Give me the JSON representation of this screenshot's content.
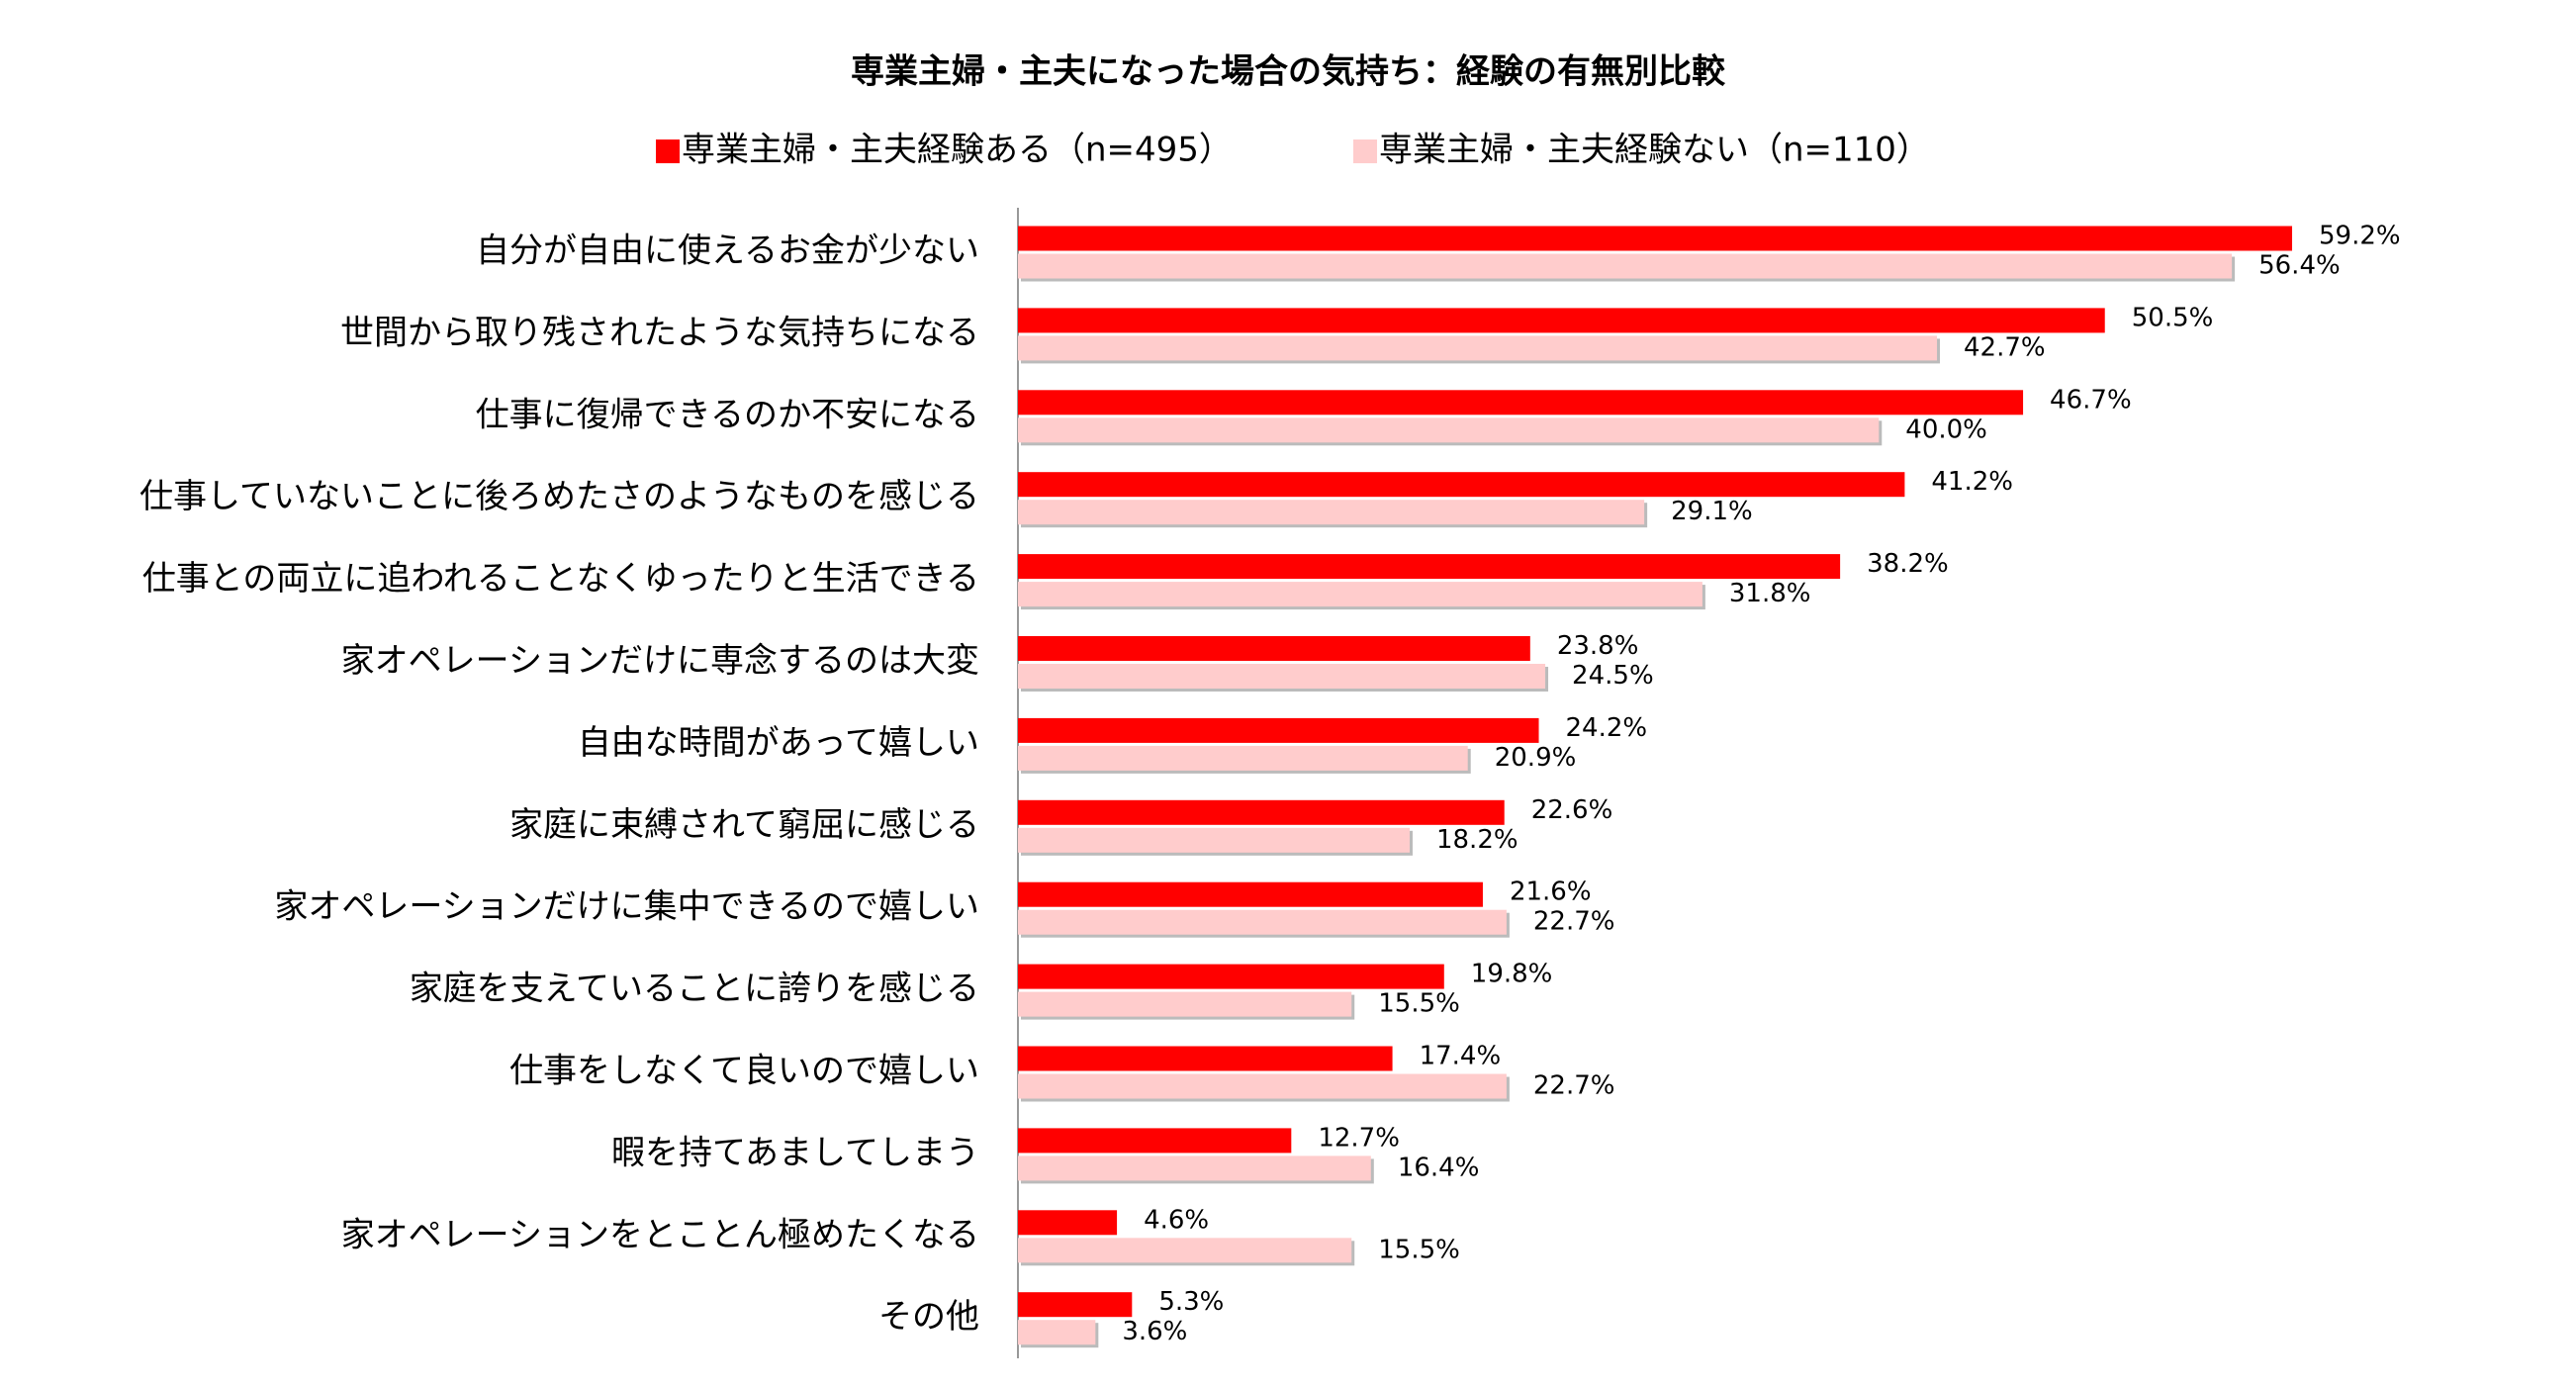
{
  "chart_data": {
    "type": "bar",
    "orientation": "horizontal",
    "title": "専業主婦・主夫になった場合の気持ち：経験の有無別比較",
    "categories": [
      "自分が自由に使えるお金が少ない",
      "世間から取り残されたような気持ちになる",
      "仕事に復帰できるのか不安になる",
      "仕事していないことに後ろめたさのようなものを感じる",
      "仕事との両立に追われることなくゆったりと生活できる",
      "家オペレーションだけに専念するのは大変",
      "自由な時間があって嬉しい",
      "家庭に束縛されて窮屈に感じる",
      "家オペレーションだけに集中できるので嬉しい",
      "家庭を支えていることに誇りを感じる",
      "仕事をしなくて良いので嬉しい",
      "暇を持てあましてしまう",
      "家オペレーションをとことん極めたくなる",
      "その他"
    ],
    "series": [
      {
        "name": "専業主婦・主夫経験ある（n=495）",
        "color": "#ff0000",
        "values": [
          59.2,
          50.5,
          46.7,
          41.2,
          38.2,
          23.8,
          24.2,
          22.6,
          21.6,
          19.8,
          17.4,
          12.7,
          4.6,
          5.3
        ],
        "value_labels": [
          "59.2%",
          "50.5%",
          "46.7%",
          "41.2%",
          "38.2%",
          "23.8%",
          "24.2%",
          "22.6%",
          "21.6%",
          "19.8%",
          "17.4%",
          "12.7%",
          "4.6%",
          "5.3%"
        ]
      },
      {
        "name": "専業主婦・主夫経験ない（n=110）",
        "color": "#ffcccc",
        "values": [
          56.4,
          42.7,
          40.0,
          29.1,
          31.8,
          24.5,
          20.9,
          18.2,
          22.7,
          15.5,
          22.7,
          16.4,
          15.5,
          3.6
        ],
        "value_labels": [
          "56.4%",
          "42.7%",
          "40.0%",
          "29.1%",
          "31.8%",
          "24.5%",
          "20.9%",
          "18.2%",
          "22.7%",
          "15.5%",
          "22.7%",
          "16.4%",
          "15.5%",
          "3.6%"
        ]
      }
    ],
    "xlim": [
      0,
      70
    ],
    "legend": "top"
  }
}
